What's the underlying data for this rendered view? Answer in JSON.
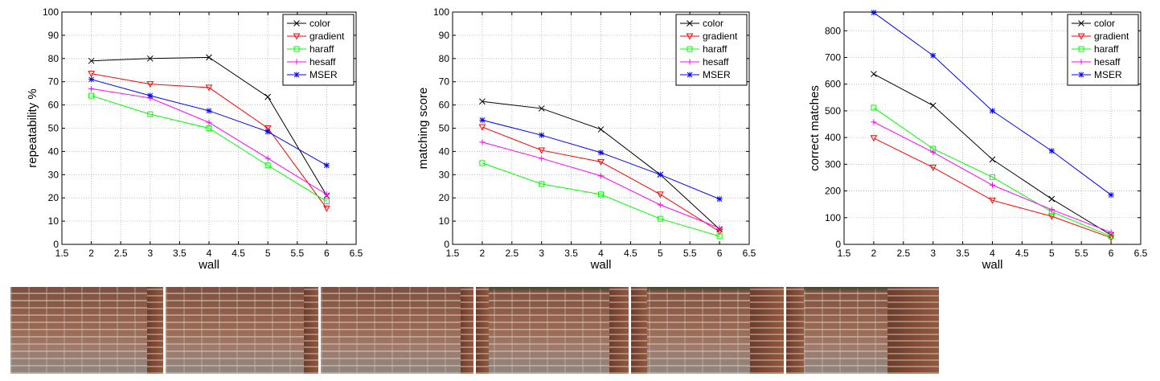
{
  "chart_data": [
    {
      "type": "line",
      "xlabel": "wall",
      "ylabel": "repeatability %",
      "xlim": [
        1.5,
        6.5
      ],
      "ylim": [
        0,
        100
      ],
      "xticks": [
        "1.5",
        "2",
        "2.5",
        "3",
        "3.5",
        "4",
        "4.5",
        "5",
        "5.5",
        "6",
        "6.5"
      ],
      "yticks": [
        "0",
        "10",
        "20",
        "30",
        "40",
        "50",
        "60",
        "70",
        "80",
        "90",
        "100"
      ],
      "grid": true,
      "legend_position": "top-right",
      "x": [
        2,
        3,
        4,
        5,
        6
      ],
      "series": [
        {
          "name": "color",
          "color": "#000000",
          "marker": "x",
          "values": [
            79,
            80,
            80.5,
            63.5,
            21
          ]
        },
        {
          "name": "gradient",
          "color": "#ff0000",
          "marker": "triangle-down",
          "values": [
            73.5,
            69,
            67.5,
            50,
            15.5
          ]
        },
        {
          "name": "haraff",
          "color": "#00ff00",
          "marker": "square",
          "values": [
            64,
            56,
            50,
            34,
            18.5
          ]
        },
        {
          "name": "hesaff",
          "color": "#ff00ff",
          "marker": "plus",
          "values": [
            67,
            63,
            52.5,
            37,
            21.5
          ]
        },
        {
          "name": "MSER",
          "color": "#0000ff",
          "marker": "star",
          "values": [
            71,
            64,
            57.5,
            48.5,
            34
          ]
        }
      ]
    },
    {
      "type": "line",
      "xlabel": "wall",
      "ylabel": "matching score",
      "xlim": [
        1.5,
        6.5
      ],
      "ylim": [
        0,
        100
      ],
      "xticks": [
        "1.5",
        "2",
        "2.5",
        "3",
        "3.5",
        "4",
        "4.5",
        "5",
        "5.5",
        "6",
        "6.5"
      ],
      "yticks": [
        "0",
        "10",
        "20",
        "30",
        "40",
        "50",
        "60",
        "70",
        "80",
        "90",
        "100"
      ],
      "grid": true,
      "legend_position": "top-right",
      "x": [
        2,
        3,
        4,
        5,
        6
      ],
      "series": [
        {
          "name": "color",
          "color": "#000000",
          "marker": "x",
          "values": [
            61.5,
            58.5,
            49.5,
            30,
            6.5
          ]
        },
        {
          "name": "gradient",
          "color": "#ff0000",
          "marker": "triangle-down",
          "values": [
            50.5,
            40.5,
            35.5,
            21.5,
            5.5
          ]
        },
        {
          "name": "haraff",
          "color": "#00ff00",
          "marker": "square",
          "values": [
            35,
            26,
            21.5,
            11,
            3.5
          ]
        },
        {
          "name": "hesaff",
          "color": "#ff00ff",
          "marker": "plus",
          "values": [
            44,
            37,
            29.5,
            17,
            7
          ]
        },
        {
          "name": "MSER",
          "color": "#0000ff",
          "marker": "star",
          "values": [
            53.5,
            47,
            39.5,
            30,
            19.5
          ]
        }
      ]
    },
    {
      "type": "line",
      "xlabel": "wall",
      "ylabel": "correct matches",
      "xlim": [
        1.5,
        6.5
      ],
      "ylim": [
        0,
        870
      ],
      "xticks": [
        "1.5",
        "2",
        "2.5",
        "3",
        "3.5",
        "4",
        "4.5",
        "5",
        "5.5",
        "6",
        "6.5"
      ],
      "yticks": [
        "0",
        "100",
        "200",
        "300",
        "400",
        "500",
        "600",
        "700",
        "800"
      ],
      "grid": true,
      "legend_position": "top-right",
      "x": [
        2,
        3,
        4,
        5,
        6
      ],
      "series": [
        {
          "name": "color",
          "color": "#000000",
          "marker": "x",
          "values": [
            638,
            520,
            318,
            170,
            35
          ]
        },
        {
          "name": "gradient",
          "color": "#ff0000",
          "marker": "triangle-down",
          "values": [
            398,
            288,
            165,
            105,
            25
          ]
        },
        {
          "name": "haraff",
          "color": "#00ff00",
          "marker": "square",
          "values": [
            512,
            358,
            252,
            122,
            30
          ]
        },
        {
          "name": "hesaff",
          "color": "#ff00ff",
          "marker": "plus",
          "values": [
            458,
            345,
            222,
            130,
            45
          ]
        },
        {
          "name": "MSER",
          "color": "#0000ff",
          "marker": "star",
          "values": [
            868,
            707,
            500,
            350,
            185
          ]
        }
      ]
    }
  ],
  "thumbnails": [
    {
      "name": "wall-image-1"
    },
    {
      "name": "wall-image-2"
    },
    {
      "name": "wall-image-3"
    },
    {
      "name": "wall-image-4"
    },
    {
      "name": "wall-image-5"
    },
    {
      "name": "wall-image-6"
    }
  ]
}
